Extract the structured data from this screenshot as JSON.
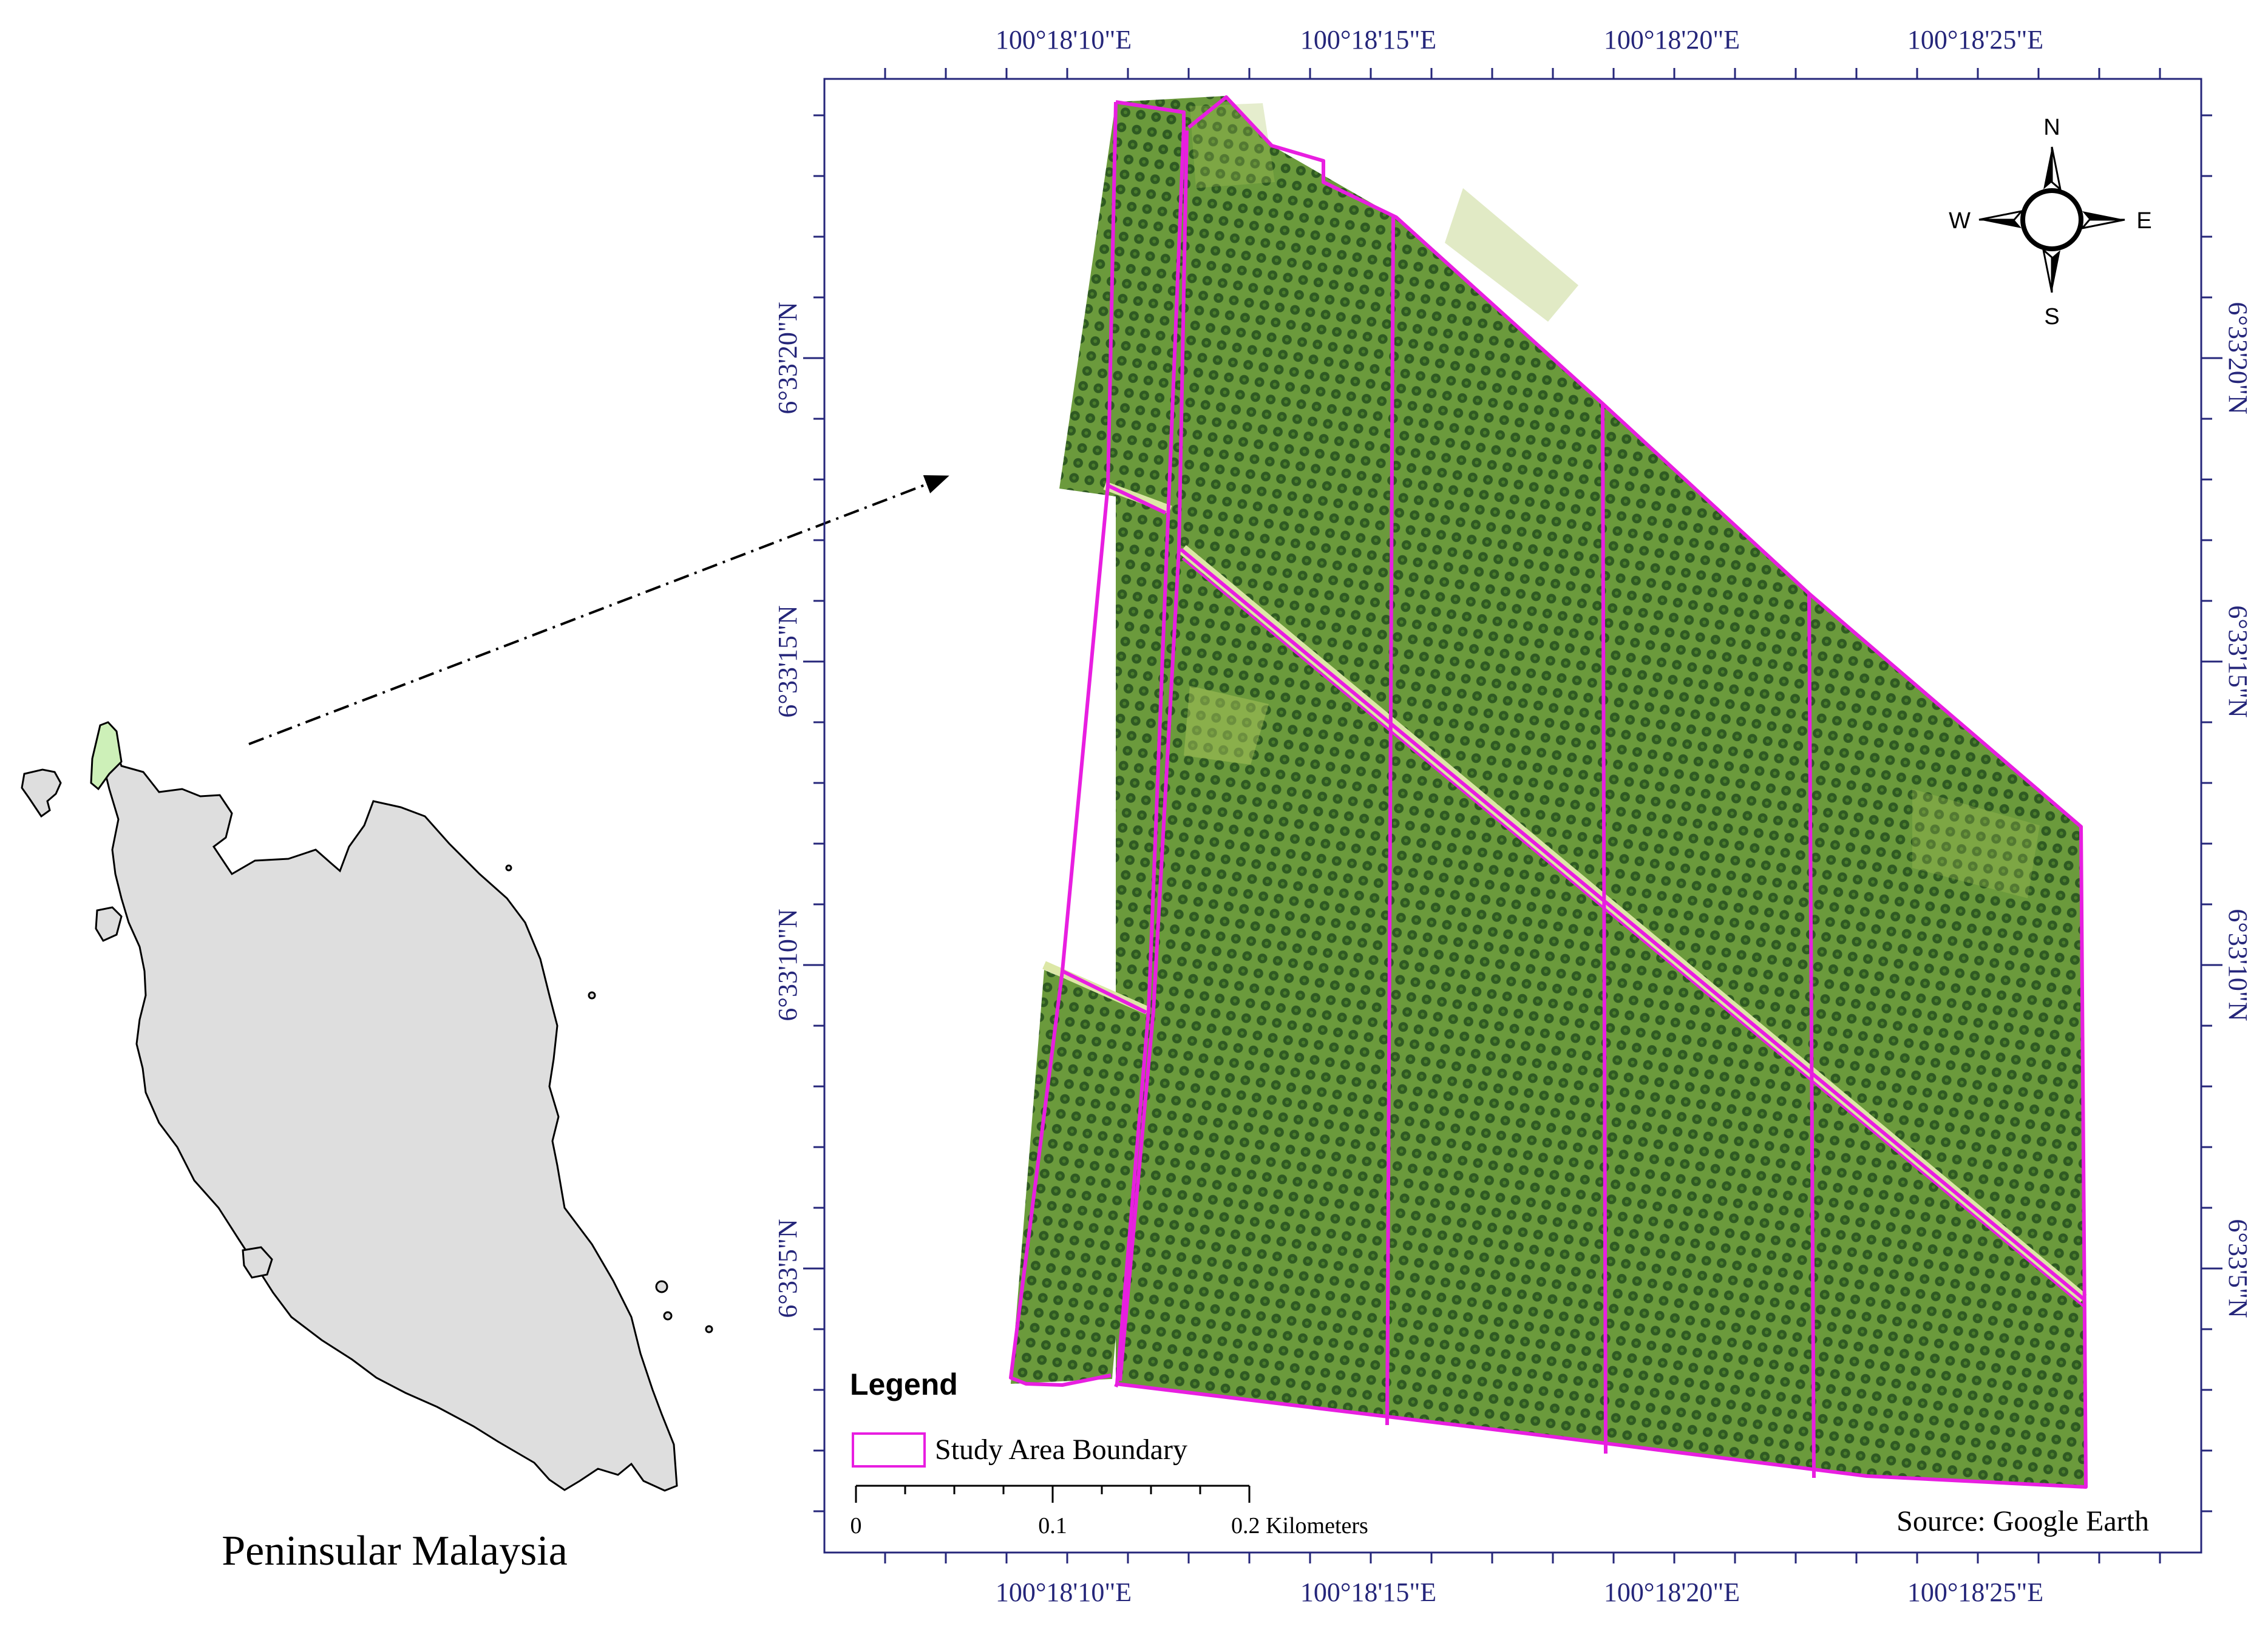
{
  "colors": {
    "boundary": "#e81ee0",
    "coord_label": "#25267a",
    "land_fill": "#dedede",
    "highlight_fill": "#cdf0b8",
    "plantation_dark": "#3b6a2a",
    "plantation_light": "#7aa043",
    "path_light": "#dce7a6"
  },
  "inset": {
    "caption": "Peninsular Malaysia"
  },
  "map": {
    "top_labels": [
      "100°18'10\"E",
      "100°18'15\"E",
      "100°18'20\"E",
      "100°18'25\"E"
    ],
    "bottom_labels": [
      "100°18'10\"E",
      "100°18'15\"E",
      "100°18'20\"E",
      "100°18'25\"E"
    ],
    "left_labels": [
      "6°33'20\"N",
      "6°33'15\"N",
      "6°33'10\"N",
      "6°33'5\"N"
    ],
    "right_labels": [
      "6°33'20\"N",
      "6°33'15\"N",
      "6°33'10\"N",
      "6°33'5\"N"
    ],
    "compass": {
      "n": "N",
      "s": "S",
      "e": "E",
      "w": "W",
      "icon": "north-arrow-icon"
    },
    "legend": {
      "title": "Legend",
      "item": "Study Area Boundary"
    },
    "scale_bar": {
      "labels": [
        "0",
        "0.1",
        "0.2 Kilometers"
      ]
    },
    "source": "Source: Google Earth"
  }
}
